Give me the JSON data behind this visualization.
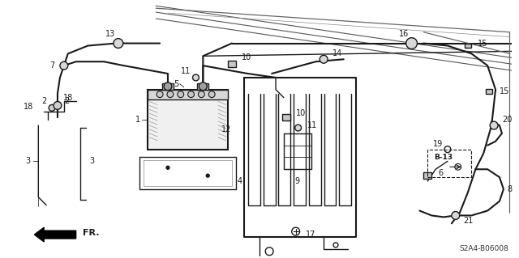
{
  "bg_color": "#ffffff",
  "diagram_code": "S2A4-B06008",
  "fig_width": 6.4,
  "fig_height": 3.19,
  "dpi": 100,
  "line_color": "#1a1a1a",
  "gray_color": "#888888",
  "light_gray": "#cccccc",
  "panel_color": "#e0e0e0"
}
